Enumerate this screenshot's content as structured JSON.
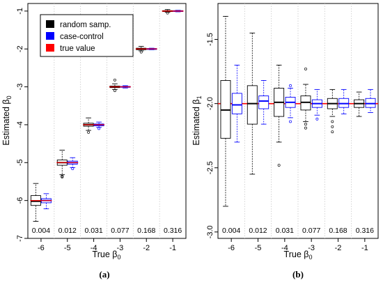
{
  "chart_data": [
    {
      "type": "boxplot",
      "panel_label": "(a)",
      "xlabel_main": "True β",
      "xlabel_sub": "0",
      "ylabel_main": "Estimated β",
      "ylabel_sub": "0",
      "xlim": [
        -6.5,
        -0.5
      ],
      "ylim": [
        -7,
        -0.8
      ],
      "x_ticks": [
        -6,
        -5,
        -4,
        -3,
        -2,
        -1
      ],
      "y_ticks": [
        -7,
        -6,
        -5,
        -4,
        -3,
        -2,
        -1
      ],
      "annotations": [
        "0.004",
        "0.012",
        "0.031",
        "0.077",
        "0.168",
        "0.316"
      ],
      "legend": {
        "position": "top-left",
        "entries": [
          {
            "label": "random samp.",
            "color": "#000000"
          },
          {
            "label": "case-control",
            "color": "#0000ff"
          },
          {
            "label": "true value",
            "color": "#ff0000"
          }
        ]
      },
      "true_values": [
        -6,
        -5,
        -4,
        -3,
        -2,
        -1
      ],
      "series": [
        {
          "name": "random samp.",
          "color": "#000000",
          "boxes": [
            {
              "x": -6,
              "min": -6.55,
              "q1": -6.13,
              "median": -6.02,
              "q3": -5.87,
              "max": -5.55,
              "outliers": []
            },
            {
              "x": -5,
              "min": -5.32,
              "q1": -5.07,
              "median": -5.0,
              "q3": -4.93,
              "max": -4.67,
              "outliers": [
                -5.36,
                -5.38
              ]
            },
            {
              "x": -4,
              "min": -4.15,
              "q1": -4.04,
              "median": -4.0,
              "q3": -3.96,
              "max": -3.82,
              "outliers": [
                -4.2
              ]
            },
            {
              "x": -3,
              "min": -3.07,
              "q1": -3.02,
              "median": -3.0,
              "q3": -2.98,
              "max": -2.92,
              "outliers": [
                -2.82,
                -3.1
              ]
            },
            {
              "x": -2,
              "min": -2.05,
              "q1": -2.02,
              "median": -2.0,
              "q3": -1.98,
              "max": -1.93,
              "outliers": [
                -2.08
              ]
            },
            {
              "x": -1,
              "min": -1.03,
              "q1": -1.01,
              "median": -1.0,
              "q3": -0.99,
              "max": -0.96,
              "outliers": [
                -1.05
              ]
            }
          ]
        },
        {
          "name": "case-control",
          "color": "#0000ff",
          "boxes": [
            {
              "x": -6,
              "min": -6.22,
              "q1": -6.06,
              "median": -6.0,
              "q3": -5.95,
              "max": -5.82,
              "outliers": []
            },
            {
              "x": -5,
              "min": -5.13,
              "q1": -5.04,
              "median": -5.0,
              "q3": -4.96,
              "max": -4.87,
              "outliers": [
                -5.16
              ]
            },
            {
              "x": -4,
              "min": -4.07,
              "q1": -4.03,
              "median": -4.0,
              "q3": -3.98,
              "max": -3.93,
              "outliers": [
                -4.1
              ]
            },
            {
              "x": -3,
              "min": -3.03,
              "q1": -3.01,
              "median": -3.0,
              "q3": -2.99,
              "max": -2.97,
              "outliers": []
            },
            {
              "x": -2,
              "min": -2.02,
              "q1": -2.01,
              "median": -2.0,
              "q3": -1.99,
              "max": -1.98,
              "outliers": []
            },
            {
              "x": -1,
              "min": -1.02,
              "q1": -1.01,
              "median": -1.0,
              "q3": -0.99,
              "max": -0.98,
              "outliers": []
            }
          ]
        }
      ]
    },
    {
      "type": "boxplot",
      "panel_label": "(b)",
      "xlabel_main": "True β",
      "xlabel_sub": "0",
      "ylabel_main": "Estimated β",
      "ylabel_sub": "1",
      "xlim": [
        -6.5,
        -0.5
      ],
      "ylim": [
        -3.05,
        -1.22
      ],
      "x_ticks": [
        -6,
        -5,
        -4,
        -3,
        -2,
        -1
      ],
      "y_ticks": [
        -3.0,
        -2.5,
        -2.0,
        -1.5
      ],
      "y_tick_labels": [
        "-3.0",
        "-2.5",
        "-2.0",
        "-1.5"
      ],
      "annotations": [
        "0.004",
        "0.012",
        "0.031",
        "0.077",
        "0.168",
        "0.316"
      ],
      "true_value": -2.0,
      "true_value_color": "#ff0000",
      "series": [
        {
          "name": "random samp.",
          "color": "#000000",
          "boxes": [
            {
              "x": -6,
              "min": -2.8,
              "q1": -2.27,
              "median": -2.05,
              "q3": -1.82,
              "max": -1.32,
              "outliers": []
            },
            {
              "x": -5,
              "min": -2.55,
              "q1": -2.16,
              "median": -2.0,
              "q3": -1.86,
              "max": -1.45,
              "outliers": []
            },
            {
              "x": -4,
              "min": -2.3,
              "q1": -2.1,
              "median": -1.99,
              "q3": -1.88,
              "max": -1.7,
              "outliers": [
                -2.48
              ]
            },
            {
              "x": -3,
              "min": -2.14,
              "q1": -2.05,
              "median": -1.99,
              "q3": -1.94,
              "max": -1.85,
              "outliers": [
                -1.73,
                -2.16,
                -2.19
              ]
            },
            {
              "x": -2,
              "min": -2.1,
              "q1": -2.04,
              "median": -2.0,
              "q3": -1.96,
              "max": -1.89,
              "outliers": [
                -2.14,
                -2.18,
                -2.22
              ]
            },
            {
              "x": -1,
              "min": -2.1,
              "q1": -2.03,
              "median": -2.0,
              "q3": -1.97,
              "max": -1.91,
              "outliers": []
            }
          ]
        },
        {
          "name": "case-control",
          "color": "#0000ff",
          "boxes": [
            {
              "x": -6,
              "min": -2.3,
              "q1": -2.08,
              "median": -2.01,
              "q3": -1.92,
              "max": -1.7,
              "outliers": []
            },
            {
              "x": -5,
              "min": -2.16,
              "q1": -2.04,
              "median": -1.98,
              "q3": -1.94,
              "max": -1.82,
              "outliers": []
            },
            {
              "x": -4,
              "min": -2.11,
              "q1": -2.03,
              "median": -1.99,
              "q3": -1.95,
              "max": -1.88,
              "outliers": [
                -2.14,
                -1.86
              ]
            },
            {
              "x": -3,
              "min": -2.09,
              "q1": -2.03,
              "median": -2.0,
              "q3": -1.97,
              "max": -1.89,
              "outliers": [
                -2.12
              ]
            },
            {
              "x": -2,
              "min": -2.08,
              "q1": -2.03,
              "median": -2.0,
              "q3": -1.96,
              "max": -1.89,
              "outliers": []
            },
            {
              "x": -1,
              "min": -2.07,
              "q1": -2.03,
              "median": -2.0,
              "q3": -1.96,
              "max": -1.89,
              "outliers": []
            }
          ]
        }
      ]
    }
  ]
}
